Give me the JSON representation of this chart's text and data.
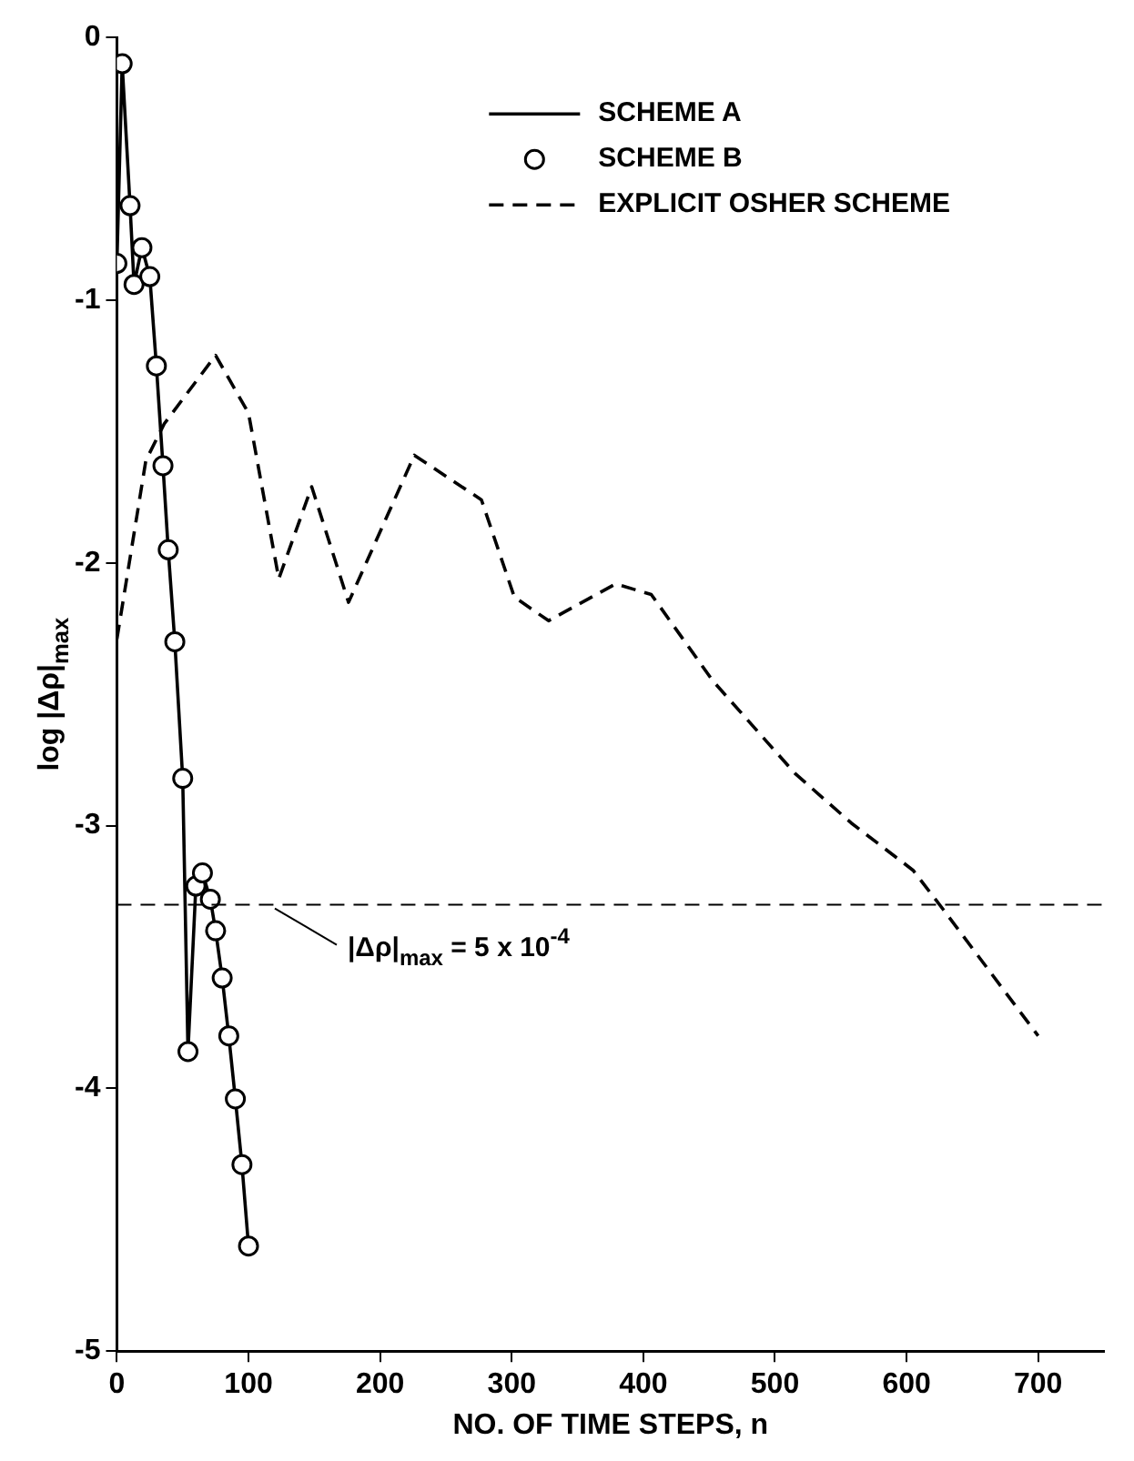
{
  "chart_data": {
    "type": "line",
    "xlabel": "NO. OF TIME STEPS, n",
    "ylabel": "log |Δρ|$_{max}$",
    "xlim": [
      0,
      750
    ],
    "xticks": [
      0,
      100,
      200,
      300,
      400,
      500,
      600,
      700
    ],
    "ylim": [
      -5,
      0
    ],
    "yticks": [
      -5,
      -4,
      -3,
      -2,
      -1,
      0
    ],
    "legend": "top right",
    "ref_lines": [
      {
        "axis": "y",
        "value": -3.301,
        "line_style": "dashed",
        "color": "#000000"
      }
    ],
    "annotations": [
      {
        "text": "|Δρ|$_{max}$ = 5 x 10$^{-4}$",
        "x": 120,
        "y": -3.301
      }
    ],
    "series": [
      {
        "name": "SCHEME A",
        "color": "#000000",
        "marker": "none",
        "line_style": "solid",
        "x": [
          0,
          4,
          10,
          13,
          19,
          25,
          30,
          35,
          39,
          44,
          50,
          54,
          60,
          65,
          71,
          75,
          80,
          85,
          90,
          95,
          100
        ],
        "values": [
          -0.86,
          -0.1,
          -0.64,
          -0.94,
          -0.8,
          -0.91,
          -1.25,
          -1.63,
          -1.95,
          -2.3,
          -2.82,
          -3.86,
          -3.23,
          -3.18,
          -3.28,
          -3.4,
          -3.58,
          -3.8,
          -4.04,
          -4.29,
          -4.6
        ]
      },
      {
        "name": "SCHEME B",
        "type": "scatter",
        "color": "#000000",
        "marker": "circle",
        "x": [
          0,
          4,
          10,
          13,
          19,
          25,
          30,
          35,
          39,
          44,
          50,
          54,
          60,
          65,
          71,
          75,
          80,
          85,
          90,
          95,
          100
        ],
        "values": [
          -0.86,
          -0.1,
          -0.64,
          -0.94,
          -0.8,
          -0.91,
          -1.25,
          -1.63,
          -1.95,
          -2.3,
          -2.82,
          -3.86,
          -3.23,
          -3.18,
          -3.28,
          -3.4,
          -3.58,
          -3.8,
          -4.04,
          -4.29,
          -4.6
        ]
      },
      {
        "name": "EXPLICIT OSHER SCHEME",
        "color": "#000000",
        "marker": "none",
        "line_style": "dashed",
        "x": [
          0,
          22,
          36,
          75,
          100,
          123,
          148,
          176,
          226,
          277,
          302,
          328,
          379,
          406,
          453,
          515,
          558,
          605,
          628,
          700
        ],
        "values": [
          -2.29,
          -1.61,
          -1.47,
          -1.21,
          -1.43,
          -2.06,
          -1.71,
          -2.15,
          -1.59,
          -1.76,
          -2.13,
          -2.22,
          -2.08,
          -2.12,
          -2.45,
          -2.8,
          -2.99,
          -3.17,
          -3.32,
          -3.8
        ]
      }
    ]
  }
}
